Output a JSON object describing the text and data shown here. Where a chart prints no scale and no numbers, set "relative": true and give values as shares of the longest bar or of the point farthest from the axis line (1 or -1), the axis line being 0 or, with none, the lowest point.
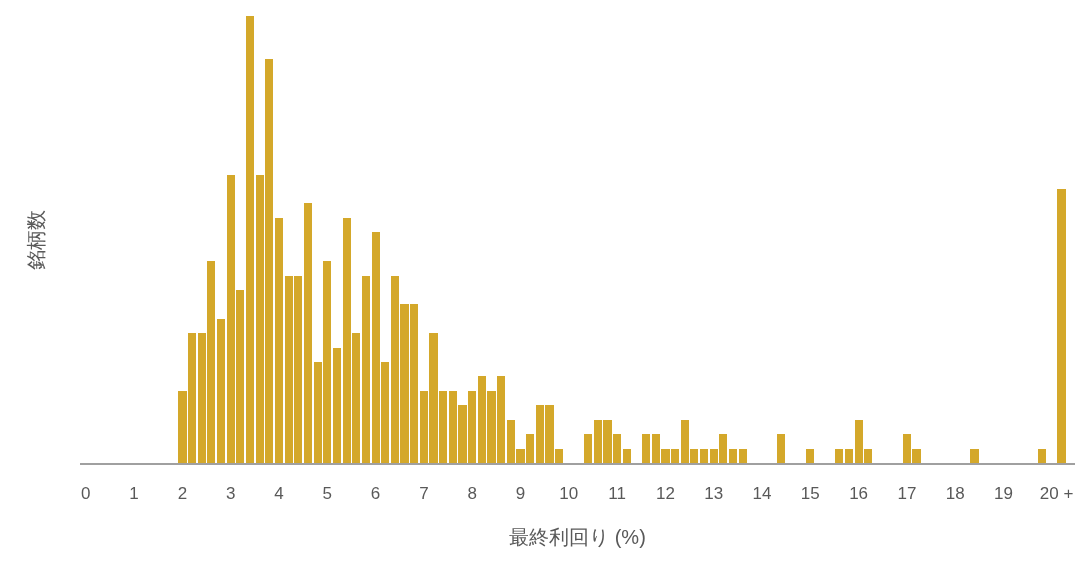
{
  "chart_data": {
    "type": "bar",
    "relative": true,
    "xlabel": "最終利回り (%)",
    "ylabel": "銘柄数",
    "color": "#d4a82a",
    "x": [
      2.0,
      2.2,
      2.4,
      2.6,
      2.8,
      3.0,
      3.2,
      3.4,
      3.6,
      3.8,
      4.0,
      4.2,
      4.4,
      4.6,
      4.8,
      5.0,
      5.2,
      5.4,
      5.6,
      5.8,
      6.0,
      6.2,
      6.4,
      6.6,
      6.8,
      7.0,
      7.2,
      7.4,
      7.6,
      7.8,
      8.0,
      8.2,
      8.4,
      8.6,
      8.8,
      9.0,
      9.2,
      9.4,
      9.6,
      9.8,
      10.4,
      10.6,
      10.8,
      11.0,
      11.2,
      11.6,
      11.8,
      12.0,
      12.2,
      12.4,
      12.6,
      12.8,
      13.0,
      13.2,
      13.4,
      13.6,
      14.4,
      15.0,
      15.6,
      15.8,
      16.0,
      16.2,
      17.0,
      17.2,
      18.4,
      19.8,
      20.2
    ],
    "values": [
      0.161,
      0.29,
      0.29,
      0.452,
      0.323,
      0.645,
      0.387,
      1,
      0.645,
      0.903,
      0.548,
      0.419,
      0.419,
      0.581,
      0.226,
      0.452,
      0.258,
      0.548,
      0.29,
      0.419,
      0.516,
      0.226,
      0.419,
      0.355,
      0.355,
      0.161,
      0.29,
      0.161,
      0.161,
      0.129,
      0.161,
      0.194,
      0.161,
      0.194,
      0.097,
      0.032,
      0.065,
      0.129,
      0.129,
      0.032,
      0.065,
      0.097,
      0.097,
      0.065,
      0.032,
      0.065,
      0.065,
      0.032,
      0.032,
      0.097,
      0.032,
      0.032,
      0.032,
      0.065,
      0.032,
      0.032,
      0.065,
      0.032,
      0.032,
      0.032,
      0.097,
      0.032,
      0.065,
      0.032,
      0.032,
      0.032,
      0.613
    ],
    "xlim": [
      -0.12,
      20.48
    ],
    "xticks": [
      0,
      1,
      2,
      3,
      4,
      5,
      6,
      7,
      8,
      9,
      10,
      11,
      12,
      13,
      14,
      15,
      16,
      17,
      18,
      19,
      {
        "value": 20.1,
        "label": "20 +"
      }
    ],
    "grid": false
  }
}
